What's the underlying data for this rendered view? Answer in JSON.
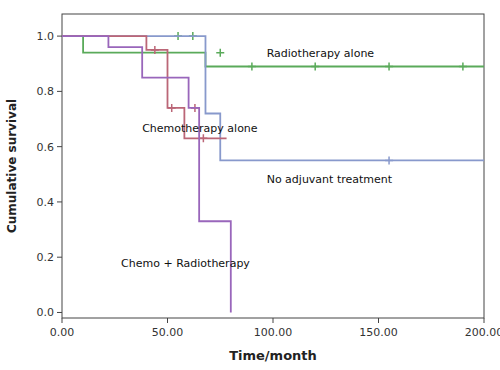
{
  "chart_data": {
    "type": "step",
    "x_label": "Time/month",
    "y_label": "Cumulative survival",
    "xlim": [
      0,
      200
    ],
    "ylim": [
      -0.02,
      1.08
    ],
    "xticks": [
      {
        "value": 0.0,
        "label": "0.00"
      },
      {
        "value": 50.0,
        "label": "50.00"
      },
      {
        "value": 100.0,
        "label": "100.00"
      },
      {
        "value": 150.0,
        "label": "150.00"
      },
      {
        "value": 200.0,
        "label": "200.00"
      }
    ],
    "yticks": [
      {
        "value": 0.0,
        "label": "0.0"
      },
      0.2,
      0.4,
      0.6,
      0.8,
      {
        "value": 1.0,
        "label": "1.0"
      }
    ],
    "grid": false,
    "series": [
      {
        "color": "#5aaa5a",
        "marker": "plus",
        "x": [
          0,
          10,
          10,
          68,
          68,
          200
        ],
        "values": [
          1.0,
          1.0,
          0.94,
          0.94,
          0.89,
          0.89
        ],
        "censor_x": [
          55,
          62,
          75,
          90,
          120,
          155,
          190
        ],
        "censor_values": [
          1.0,
          1.0,
          0.94,
          0.89,
          0.89,
          0.89,
          0.89
        ]
      },
      {
        "color": "#8899cc",
        "marker": "plus",
        "x": [
          0,
          68,
          68,
          75,
          75,
          200
        ],
        "values": [
          1.0,
          1.0,
          0.72,
          0.72,
          0.55,
          0.55
        ],
        "censor_x": [
          155
        ],
        "censor_values": [
          0.55
        ]
      },
      {
        "color": "#bb6677",
        "marker": "plus",
        "x": [
          0,
          40,
          40,
          50,
          50,
          58,
          58,
          78
        ],
        "values": [
          1.0,
          1.0,
          0.95,
          0.95,
          0.74,
          0.74,
          0.63,
          0.63
        ],
        "censor_x": [
          44,
          52,
          63,
          67
        ],
        "censor_values": [
          0.95,
          0.74,
          0.74,
          0.63
        ]
      },
      {
        "color": "#9966bb",
        "marker": "plus",
        "x": [
          0,
          22,
          22,
          38,
          38,
          55,
          60,
          60,
          65,
          65,
          80,
          80
        ],
        "values": [
          1.0,
          1.0,
          0.96,
          0.96,
          0.85,
          0.85,
          0.85,
          0.74,
          0.74,
          0.33,
          0.33,
          0.0
        ],
        "censor_x": [],
        "censor_values": []
      }
    ],
    "annotations": [
      {
        "text": "Radiotherapy alone",
        "x": 97,
        "y": 0.935
      },
      {
        "text": "No adjuvant treatment",
        "x": 97,
        "y": 0.48
      },
      {
        "text": "Chemotherapy alone",
        "x": 38,
        "y": 0.665
      },
      {
        "text": "Chemo + Radiotherapy",
        "x": 28,
        "y": 0.175
      }
    ]
  }
}
